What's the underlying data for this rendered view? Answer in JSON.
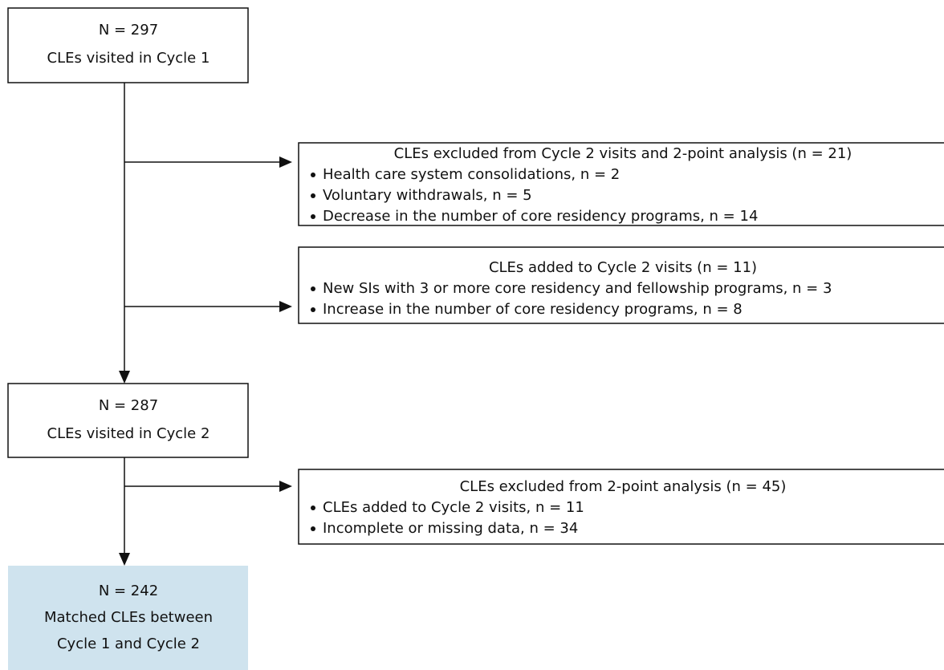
{
  "nodes": [
    {
      "lines": [
        "N = 297",
        "CLEs visited in Cycle 1"
      ]
    },
    {
      "title": "CLEs excluded from Cycle 2 visits and 2-point analysis (n = 21)",
      "bullets": [
        "Health care system consolidations, n = 2",
        "Voluntary withdrawals, n = 5",
        "Decrease in the number of core residency programs, n = 14"
      ]
    },
    {
      "title": "CLEs added to Cycle 2 visits (n = 11)",
      "bullets": [
        "New SIs with 3 or more core residency and fellowship programs, n = 3",
        "Increase in the number of core residency programs, n = 8"
      ]
    },
    {
      "lines": [
        "N = 287",
        "CLEs visited in Cycle 2"
      ]
    },
    {
      "title": "CLEs excluded from 2-point analysis (n = 45)",
      "bullets": [
        "CLEs added to Cycle 2 visits, n = 11",
        "Incomplete or missing data, n = 34"
      ]
    },
    {
      "lines": [
        "N = 242",
        "Matched CLEs between",
        "Cycle 1 and Cycle 2"
      ]
    }
  ]
}
